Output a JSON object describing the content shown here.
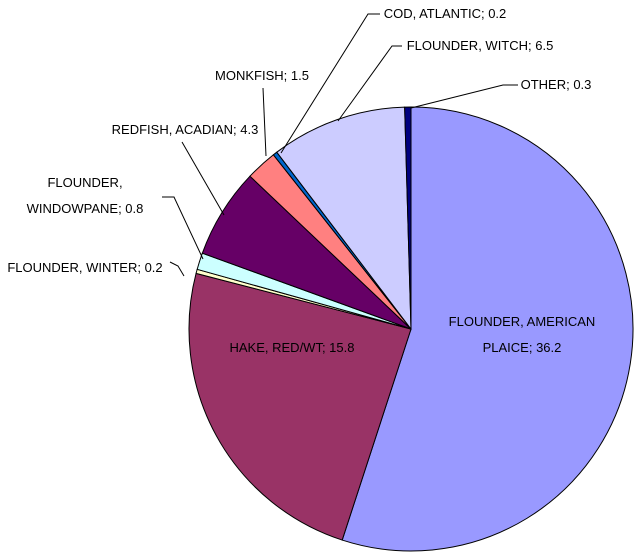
{
  "chart_data": {
    "type": "pie",
    "values": [
      36.2,
      15.8,
      0.2,
      0.8,
      4.3,
      1.5,
      0.2,
      6.5,
      0.3
    ],
    "value_labels": [
      "FLOUNDER, AMERICAN PLAICE; 36.2",
      "HAKE, RED/WT; 15.8",
      "FLOUNDER, WINTER; 0.2",
      "FLOUNDER, WINDOWPANE; 0.8",
      "REDFISH, ACADIAN; 4.3",
      "MONKFISH; 1.5",
      "COD, ATLANTIC; 0.2",
      "FLOUNDER, WITCH; 6.5",
      "OTHER; 0.3"
    ],
    "colors": [
      "#9999ff",
      "#993366",
      "#ffffcc",
      "#ccffff",
      "#660066",
      "#ff8080",
      "#0066cc",
      "#ccccff",
      "#000080"
    ]
  }
}
